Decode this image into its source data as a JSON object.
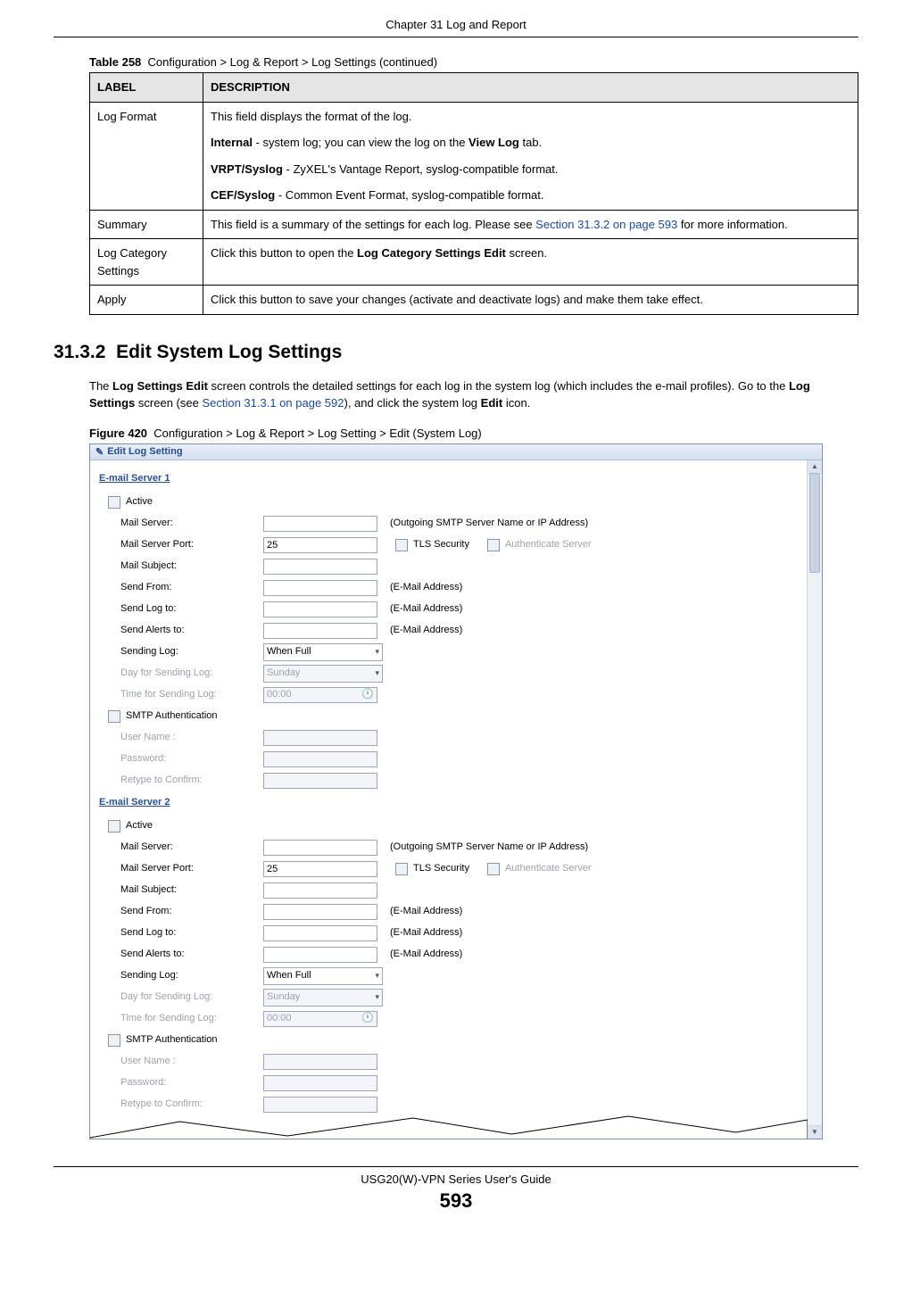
{
  "header": {
    "chapter": "Chapter 31 Log and Report"
  },
  "table": {
    "caption_num": "Table 258",
    "caption_text": "Configuration > Log & Report > Log Settings (continued)",
    "col_label": "LABEL",
    "col_desc": "DESCRIPTION",
    "rows": {
      "log_format": {
        "label": "Log Format",
        "intro": "This field displays the format of the log.",
        "line1_b": "Internal",
        "line1_t": " - system log; you can view the log on the ",
        "line1_b2": "View Log",
        "line1_t2": " tab.",
        "line2_b": "VRPT/Syslog",
        "line2_t": " - ZyXEL's Vantage Report, syslog-compatible format.",
        "line3_b": "CEF/Syslog",
        "line3_t": " - Common Event Format, syslog-compatible format."
      },
      "summary": {
        "label": "Summary",
        "pre": "This field is a summary of the settings for each log. Please see ",
        "xref": "Section 31.3.2 on page 593",
        "post": " for more information."
      },
      "log_cat": {
        "label": "Log Category Settings",
        "pre": "Click this button to open the ",
        "bold": "Log Category Settings Edit",
        "post": " screen."
      },
      "apply": {
        "label": "Apply",
        "text": "Click this button to save your changes (activate and deactivate logs) and make them take effect."
      }
    }
  },
  "section": {
    "number": "31.3.2",
    "title": "Edit System Log Settings",
    "p_pre": "The ",
    "p_b1": "Log Settings Edit",
    "p_mid1": " screen controls the detailed settings for each log in the system log (which includes the e-mail profiles). Go to the ",
    "p_b2": "Log Settings",
    "p_mid2": " screen (see ",
    "p_xref": "Section 31.3.1 on page 592",
    "p_mid3": "), and click the system log ",
    "p_b3": "Edit",
    "p_post": " icon."
  },
  "figure": {
    "num": "Figure 420",
    "caption": "Configuration > Log & Report > Log Setting > Edit (System Log)",
    "dialog_title": "Edit Log Setting",
    "servers": [
      {
        "heading": "E-mail Server 1",
        "active": "Active",
        "mail_server": "Mail Server:",
        "mail_server_hint": "(Outgoing SMTP Server Name or IP Address)",
        "mail_port": "Mail Server Port:",
        "mail_port_val": "25",
        "tls": "TLS Security",
        "auth_srv": "Authenticate Server",
        "subject": "Mail Subject:",
        "send_from": "Send From:",
        "send_log": "Send Log to:",
        "send_alert": "Send Alerts to:",
        "email_hint": "(E-Mail Address)",
        "sending_log": "Sending Log:",
        "sending_log_val": "When Full",
        "day": "Day for Sending Log:",
        "day_val": "Sunday",
        "time": "Time for Sending Log:",
        "time_val": "00:00",
        "smtp": "SMTP Authentication",
        "user": "User Name :",
        "pass": "Password:",
        "retype": "Retype to Confirm:"
      },
      {
        "heading": "E-mail Server 2",
        "active": "Active",
        "mail_server": "Mail Server:",
        "mail_server_hint": "(Outgoing SMTP Server Name or IP Address)",
        "mail_port": "Mail Server Port:",
        "mail_port_val": "25",
        "tls": "TLS Security",
        "auth_srv": "Authenticate Server",
        "subject": "Mail Subject:",
        "send_from": "Send From:",
        "send_log": "Send Log to:",
        "send_alert": "Send Alerts to:",
        "email_hint": "(E-Mail Address)",
        "sending_log": "Sending Log:",
        "sending_log_val": "When Full",
        "day": "Day for Sending Log:",
        "day_val": "Sunday",
        "time": "Time for Sending Log:",
        "time_val": "00:00",
        "smtp": "SMTP Authentication",
        "user": "User Name :",
        "pass": "Password:",
        "retype": "Retype to Confirm:"
      }
    ]
  },
  "footer": {
    "guide": "USG20(W)-VPN Series User's Guide",
    "page": "593"
  }
}
